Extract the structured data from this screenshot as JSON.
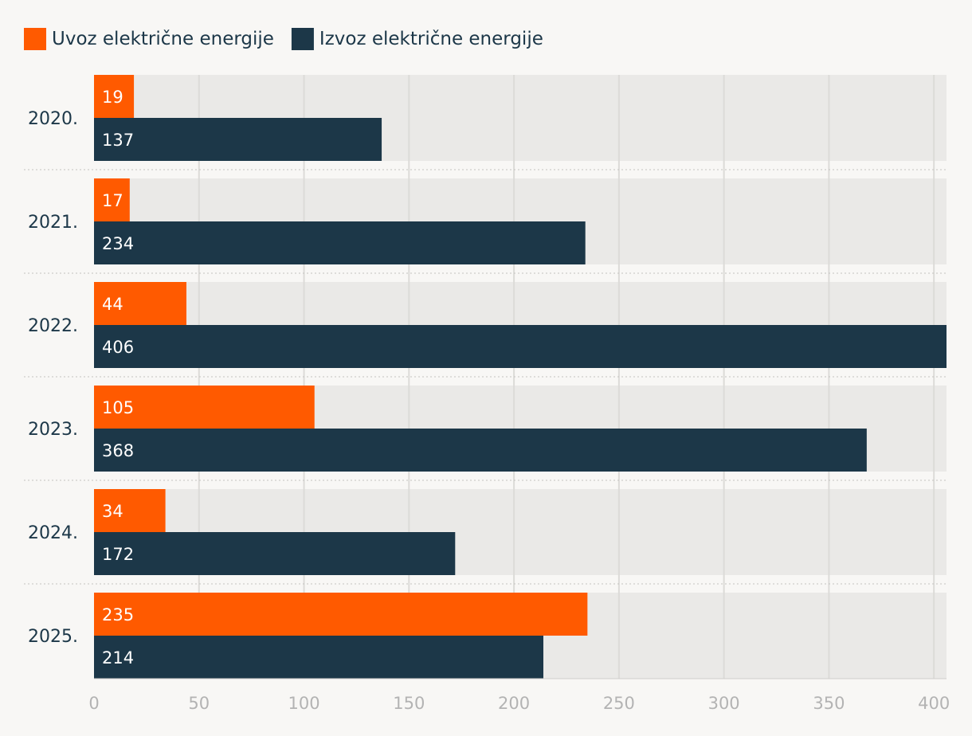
{
  "chart_data": {
    "type": "bar",
    "orientation": "horizontal",
    "categories": [
      "2020.",
      "2021.",
      "2022.",
      "2023.",
      "2024.",
      "2025."
    ],
    "series": [
      {
        "name": "Uvoz električne energije",
        "color": "#ff5a00",
        "values": [
          19,
          17,
          44,
          105,
          34,
          235
        ]
      },
      {
        "name": "Izvoz električne energije",
        "color": "#1c3748",
        "values": [
          137,
          234,
          406,
          368,
          172,
          214
        ]
      }
    ],
    "xlim": [
      0,
      406
    ],
    "xticks": [
      "0",
      "50",
      "100",
      "150",
      "200",
      "250",
      "300",
      "350",
      "400"
    ],
    "legend_position": "top-left",
    "grid": true
  }
}
